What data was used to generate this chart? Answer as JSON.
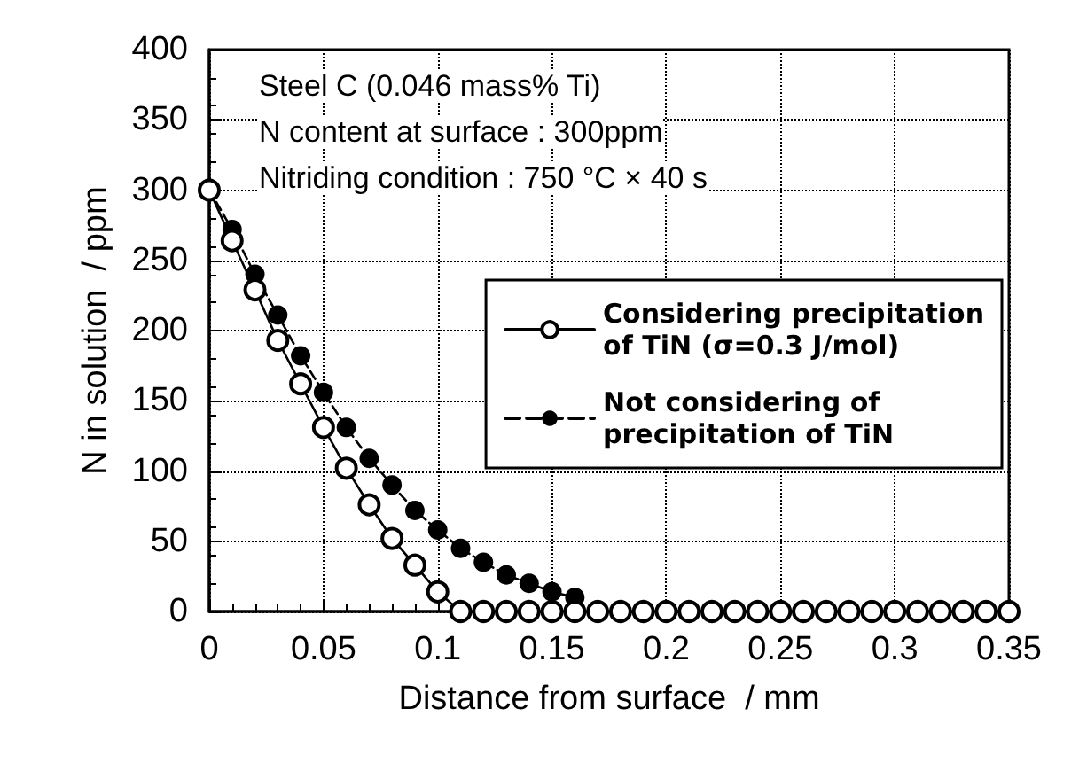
{
  "chart_data": {
    "type": "line",
    "xlabel": "Distance from surface  / mm",
    "ylabel": "N in solution  / ppm",
    "annotations": [
      "Steel C (0.046 mass% Ti)",
      "N content at surface : 300ppm",
      "Nitriding condition : 750 °C × 40 s"
    ],
    "xlim": [
      0,
      0.35
    ],
    "xticks": [
      0,
      0.05,
      0.1,
      0.15,
      0.2,
      0.25,
      0.3,
      0.35
    ],
    "ylim": [
      0,
      400
    ],
    "yticks": [
      0,
      50,
      100,
      150,
      200,
      250,
      300,
      350,
      400
    ],
    "grid": true,
    "legend": "right",
    "marker": "circle",
    "series": [
      {
        "name": "Considering precipitation\nof TiN (σ=0.3 J/mol)",
        "color": "#000000",
        "line_style": "solid",
        "x": [
          0,
          0.01,
          0.02,
          0.03,
          0.04,
          0.05,
          0.06,
          0.07,
          0.08,
          0.09,
          0.1,
          0.11,
          0.12,
          0.13,
          0.14,
          0.15,
          0.16,
          0.17,
          0.18,
          0.19,
          0.2,
          0.21,
          0.22,
          0.23,
          0.24,
          0.25,
          0.26,
          0.27,
          0.28,
          0.29,
          0.3,
          0.31,
          0.32,
          0.33,
          0.34,
          0.35
        ],
        "values": [
          300,
          264,
          229,
          193,
          162,
          131,
          102,
          76,
          52,
          33,
          14,
          0,
          0,
          0,
          0,
          0,
          0,
          0,
          0,
          0,
          0,
          0,
          0,
          0,
          0,
          0,
          0,
          0,
          0,
          0,
          0,
          0,
          0,
          0,
          0,
          0
        ]
      },
      {
        "name": "Not considering of\nprecipitation of TiN",
        "color": "#000000",
        "line_style": "dashed",
        "x": [
          0,
          0.01,
          0.02,
          0.03,
          0.04,
          0.05,
          0.06,
          0.07,
          0.08,
          0.09,
          0.1,
          0.11,
          0.12,
          0.13,
          0.14,
          0.15,
          0.16
        ],
        "values": [
          300,
          272,
          240,
          211,
          182,
          156,
          131,
          109,
          90,
          72,
          58,
          45,
          35,
          26,
          20,
          14,
          10
        ]
      }
    ]
  }
}
